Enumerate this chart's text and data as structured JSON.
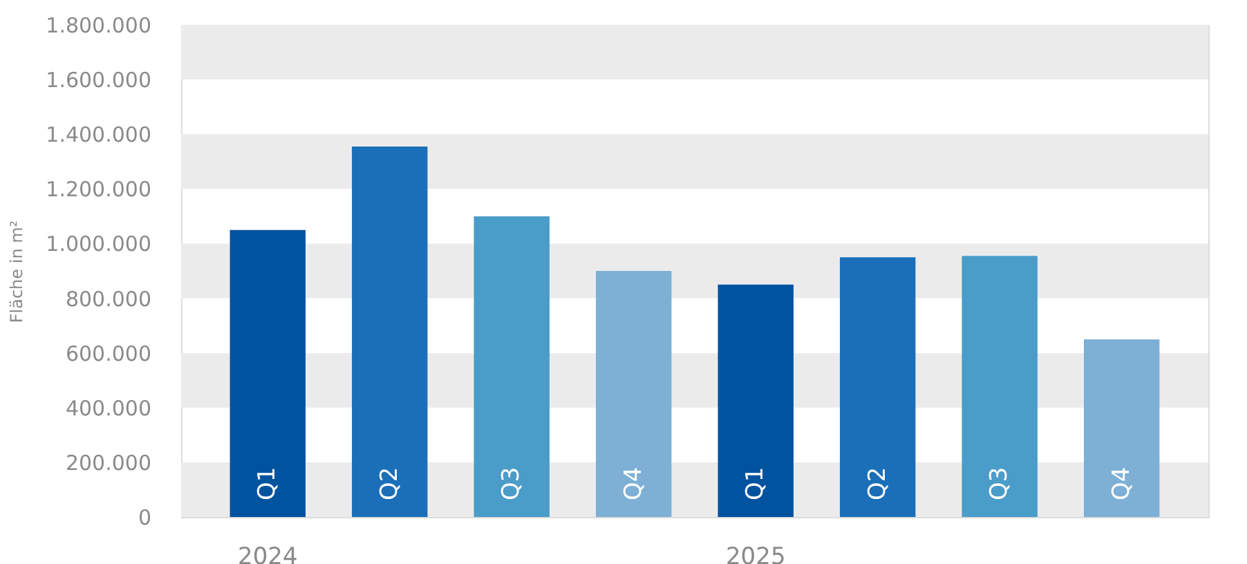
{
  "chart_data": {
    "type": "bar",
    "ylabel": "Fläche in m²",
    "categories": [
      "Q1",
      "Q2",
      "Q3",
      "Q4",
      "Q1",
      "Q2",
      "Q3",
      "Q4"
    ],
    "values": [
      1050000,
      1355000,
      1100000,
      900000,
      850000,
      950000,
      955000,
      650000
    ],
    "colors": [
      "#00539f",
      "#1a6fb8",
      "#4a9cc9",
      "#7eb0d6",
      "#00539f",
      "#1a6fb8",
      "#4a9cc9",
      "#7eb0d6"
    ],
    "ylim": [
      0,
      1800000
    ],
    "yticks": [
      0,
      {
        "value": 200000,
        "label": "200.000"
      },
      {
        "value": 400000,
        "label": "400.000"
      },
      {
        "value": 600000,
        "label": "600.000"
      },
      {
        "value": 800000,
        "label": "800.000"
      },
      {
        "value": 1000000,
        "label": "1.000.000"
      },
      {
        "value": 1200000,
        "label": "1.200.000"
      },
      {
        "value": 1400000,
        "label": "1.400.000"
      },
      {
        "value": 1600000,
        "label": "1.600.000"
      },
      {
        "value": 1800000,
        "label": "1.800.000"
      }
    ],
    "bands": [
      {
        "axis": "y",
        "from": 0,
        "to": 200000,
        "color": "#ecebec"
      },
      {
        "axis": "y",
        "from": 400000,
        "to": 600000,
        "color": "#ecebec"
      },
      {
        "axis": "y",
        "from": 800000,
        "to": 1000000,
        "color": "#ecebec"
      },
      {
        "axis": "y",
        "from": 1200000,
        "to": 1400000,
        "color": "#ecebec"
      },
      {
        "axis": "y",
        "from": 1600000,
        "to": 1800000,
        "color": "#ecebec"
      }
    ],
    "annotations": [
      "2024",
      "2025"
    ]
  }
}
